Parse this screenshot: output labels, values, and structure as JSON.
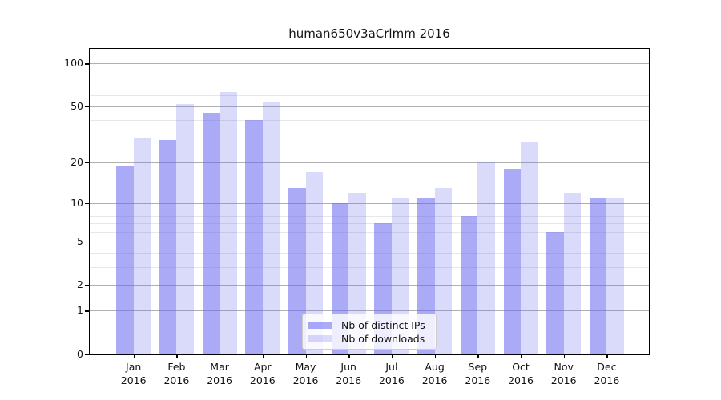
{
  "title": "human650v3aCrlmm 2016",
  "chart_data": {
    "type": "bar",
    "title": "human650v3aCrlmm 2016",
    "categories": [
      "Jan",
      "Feb",
      "Mar",
      "Apr",
      "May",
      "Jun",
      "Jul",
      "Aug",
      "Sep",
      "Oct",
      "Nov",
      "Dec"
    ],
    "year": "2016",
    "series": [
      {
        "name": "Nb of distinct IPs",
        "color": "#aaaaf7",
        "fill": "rgba(100,100,240,0.55)",
        "values": [
          19,
          29,
          45,
          40,
          13,
          10,
          7,
          11,
          8,
          18,
          6,
          11
        ]
      },
      {
        "name": "Nb of downloads",
        "color": "#d9d9fb",
        "fill": "rgba(100,100,240,0.24)",
        "values": [
          30,
          52,
          63,
          54,
          17,
          12,
          11,
          13,
          20,
          28,
          12,
          11
        ]
      }
    ],
    "xlabel": "",
    "ylabel": "",
    "yscale": "log10(1+x)",
    "ylim": [
      0,
      126
    ],
    "yticks": [
      0,
      1,
      2,
      5,
      10,
      20,
      50,
      100
    ],
    "minor_yticks": [
      3,
      4,
      6,
      7,
      8,
      9,
      30,
      40,
      60,
      70,
      80,
      90
    ],
    "grid": true,
    "legend_position": "bottom-center",
    "grid_major_color": "#b0b0b0",
    "grid_minor_color": "#e7e7e7"
  }
}
